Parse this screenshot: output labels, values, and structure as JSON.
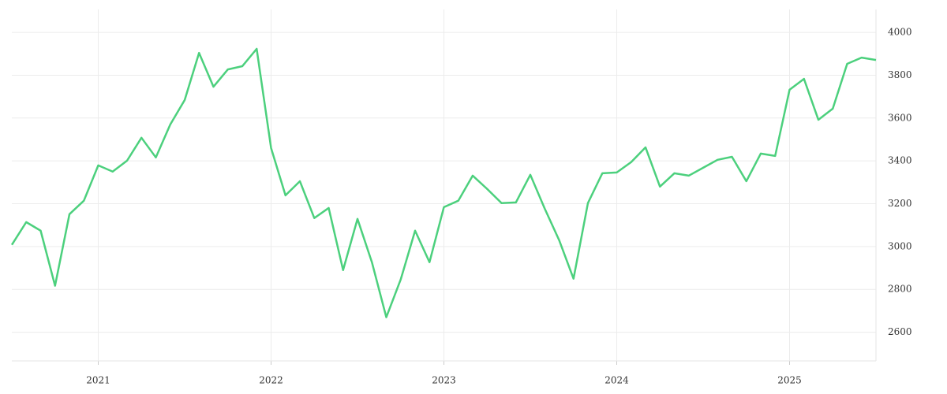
{
  "chart_data": {
    "type": "line",
    "color": "#4cd07d",
    "grid": true,
    "y_axis_side": "right",
    "categories": [
      null,
      null,
      null,
      null,
      null,
      null,
      "2021",
      null,
      null,
      null,
      null,
      null,
      null,
      null,
      null,
      null,
      null,
      null,
      "2022",
      null,
      null,
      null,
      null,
      null,
      null,
      null,
      null,
      null,
      null,
      null,
      "2023",
      null,
      null,
      null,
      null,
      null,
      null,
      null,
      null,
      null,
      null,
      null,
      "2024",
      null,
      null,
      null,
      null,
      null,
      null,
      null,
      null,
      null,
      null,
      null,
      "2025",
      null,
      null,
      null,
      null,
      null,
      null
    ],
    "values": [
      3008,
      3114,
      3074,
      2817,
      3151,
      3214,
      3379,
      3350,
      3401,
      3508,
      3416,
      3570,
      3684,
      3904,
      3746,
      3827,
      3842,
      3923,
      3460,
      3239,
      3305,
      3133,
      3180,
      2890,
      3129,
      2927,
      2670,
      2846,
      3074,
      2927,
      3184,
      3214,
      3331,
      3269,
      3203,
      3206,
      3335,
      3177,
      3030,
      2850,
      3203,
      3342,
      3346,
      3394,
      3463,
      3280,
      3342,
      3331,
      3368,
      3405,
      3419,
      3305,
      3434,
      3423,
      3732,
      3783,
      3592,
      3644,
      3853,
      3882,
      3871
    ],
    "ylim": [
      2466,
      4107
    ],
    "yticks": [
      2600,
      2800,
      3000,
      3200,
      3400,
      3600,
      3800,
      4000
    ]
  }
}
